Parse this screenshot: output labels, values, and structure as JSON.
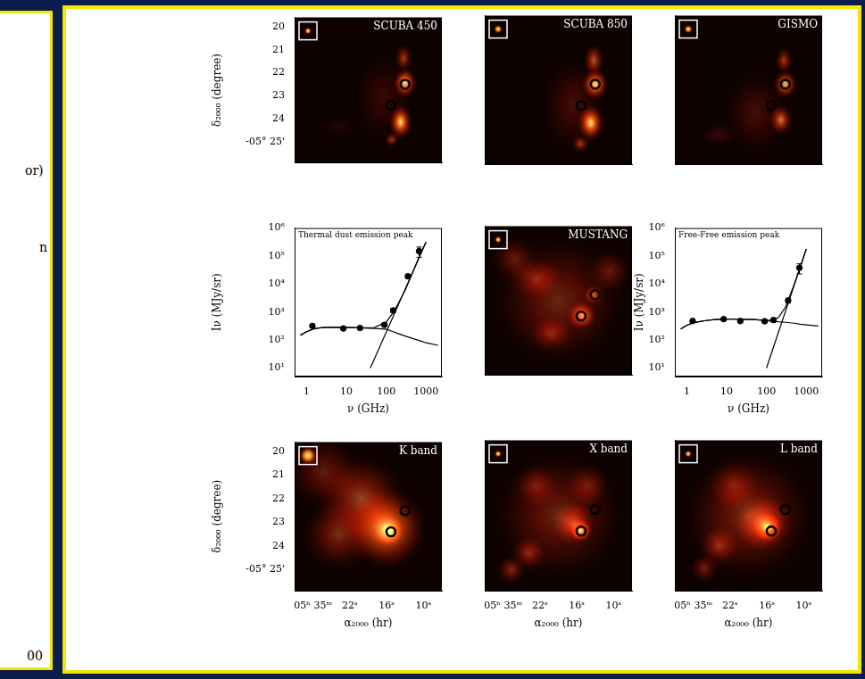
{
  "left_fragment": {
    "texts": [
      "or)",
      "n",
      "00"
    ]
  },
  "chart_data": [
    {
      "type": "scatter",
      "title": "SCUBA 450",
      "y_label": "δ₂₀₀₀ (degree)",
      "tick_labels": "y",
      "grid": false,
      "xlim": [
        31,
        7
      ],
      "ylim": [
        25.9,
        19.6
      ],
      "yticks": [
        20,
        21,
        22,
        23,
        24,
        {
          "value": 25,
          "label": "-05° 25'"
        }
      ],
      "series": [
        {
          "x": [
            13.0,
            15.3
          ],
          "values": [
            22.5,
            23.4
          ],
          "color": "#000000",
          "marker": "circle_open"
        }
      ]
    },
    {
      "type": "scatter",
      "title": "SCUBA 850",
      "tick_labels": false,
      "grid": false,
      "xlim": [
        31,
        7
      ],
      "ylim": [
        25.9,
        19.6
      ],
      "series": [
        {
          "x": [
            13.0,
            15.3
          ],
          "values": [
            22.5,
            23.4
          ],
          "color": "#000000",
          "marker": "circle_open"
        }
      ]
    },
    {
      "type": "scatter",
      "title": "GISMO",
      "tick_labels": false,
      "grid": false,
      "xlim": [
        31,
        7
      ],
      "ylim": [
        25.9,
        19.6
      ],
      "series": [
        {
          "x": [
            13.0,
            15.3
          ],
          "values": [
            22.5,
            23.4
          ],
          "color": "#000000",
          "marker": "circle_open"
        }
      ]
    },
    {
      "type": "scatter",
      "log": true,
      "annotation": "Thermal dust emission peak",
      "x_label": "ν (GHz)",
      "y_label": "Iν (MJy/sr)",
      "tick_labels": true,
      "grid": false,
      "xlim": [
        0.5,
        2500
      ],
      "ylim": [
        5,
        1000000
      ],
      "xticks": [
        1,
        10,
        100,
        1000
      ],
      "yticks": [
        {
          "value": 10,
          "label": "10¹"
        },
        {
          "value": 100,
          "label": "10²"
        },
        {
          "value": 1000,
          "label": "10³"
        },
        {
          "value": 10000,
          "label": "10⁴"
        },
        {
          "value": 100000,
          "label": "10⁵"
        },
        {
          "value": 1000000,
          "label": "10⁶"
        }
      ],
      "series": [
        {
          "type": "scatter",
          "marker": "circle",
          "color": "#000000",
          "x": [
            1.4,
            8.4,
            22,
            90,
            150,
            350,
            670
          ],
          "values": [
            320,
            260,
            270,
            350,
            1150,
            19000,
            150000
          ],
          "errors": [
            30,
            25,
            25,
            50,
            200,
            3000,
            60000
          ]
        },
        {
          "type": "line",
          "line_style": "solid",
          "color": "#000000",
          "x": [
            0.7,
            1,
            1.5,
            2,
            3,
            5,
            10,
            20,
            50,
            100,
            150,
            200,
            300,
            500,
            700,
            1000,
            2000
          ],
          "values": [
            150,
            200,
            250,
            270,
            285,
            290,
            285,
            275,
            260,
            245,
            200,
            170,
            140,
            110,
            95,
            80,
            65
          ]
        },
        {
          "type": "line",
          "line_style": "solid",
          "color": "#000000",
          "x": [
            40,
            1000
          ],
          "values": [
            10,
            320000
          ]
        },
        {
          "type": "line",
          "line_style": "solid",
          "color": "#000000",
          "x": [
            0.7,
            1,
            1.5,
            2,
            3,
            5,
            10,
            20,
            50,
            100,
            150,
            200,
            300,
            500,
            700,
            1000
          ],
          "values": [
            150,
            200,
            250,
            270,
            285,
            290,
            285,
            275,
            280,
            440,
            960,
            2020,
            6000,
            34000,
            110000,
            320000
          ]
        }
      ]
    },
    {
      "type": "scatter",
      "title": "MUSTANG",
      "tick_labels": false,
      "grid": false,
      "xlim": [
        31,
        7
      ],
      "ylim": [
        25.9,
        19.6
      ],
      "series": [
        {
          "x": [
            13.0,
            15.3
          ],
          "values": [
            22.5,
            23.4
          ],
          "color": "#000000",
          "marker": "circle_open"
        }
      ]
    },
    {
      "type": "scatter",
      "log": true,
      "annotation": "Free-Free emission peak",
      "x_label": "ν (GHz)",
      "y_label": "Iν (MJy/sr)",
      "tick_labels": true,
      "grid": false,
      "xlim": [
        0.5,
        2500
      ],
      "ylim": [
        5,
        1000000
      ],
      "xticks": [
        1,
        10,
        100,
        1000
      ],
      "yticks": [
        {
          "value": 10,
          "label": "10¹"
        },
        {
          "value": 100,
          "label": "10²"
        },
        {
          "value": 1000,
          "label": "10³"
        },
        {
          "value": 10000,
          "label": "10⁴"
        },
        {
          "value": 100000,
          "label": "10⁵"
        },
        {
          "value": 1000000,
          "label": "10⁶"
        }
      ],
      "series": [
        {
          "type": "scatter",
          "marker": "circle",
          "color": "#000000",
          "x": [
            1.4,
            8.4,
            22,
            90,
            150,
            350,
            670
          ],
          "values": [
            480,
            560,
            480,
            470,
            520,
            2600,
            38000
          ],
          "errors": [
            40,
            50,
            40,
            50,
            80,
            500,
            15000
          ]
        },
        {
          "type": "line",
          "line_style": "solid",
          "color": "#000000",
          "x": [
            0.7,
            1,
            1.5,
            2,
            3,
            5,
            10,
            20,
            50,
            100,
            150,
            200,
            300,
            500,
            700,
            1000,
            2000
          ],
          "values": [
            250,
            340,
            420,
            450,
            500,
            540,
            560,
            560,
            540,
            490,
            470,
            450,
            430,
            400,
            370,
            350,
            320
          ]
        },
        {
          "type": "line",
          "line_style": "solid",
          "color": "#000000",
          "x": [
            100,
            1000
          ],
          "values": [
            10,
            180000
          ]
        },
        {
          "type": "line",
          "line_style": "solid",
          "color": "#000000",
          "x": [
            0.7,
            1,
            1.5,
            2,
            3,
            5,
            10,
            20,
            50,
            100,
            150,
            200,
            300,
            500,
            700,
            1000
          ],
          "values": [
            250,
            340,
            420,
            450,
            500,
            540,
            560,
            560,
            540,
            500,
            520,
            640,
            1500,
            9900,
            40000,
            180000
          ]
        }
      ]
    },
    {
      "type": "scatter",
      "title": "K band",
      "x_label": "α₂₀₀₀ (hr)",
      "y_label": "δ₂₀₀₀ (degree)",
      "tick_labels": true,
      "grid": false,
      "xlim": [
        31,
        7
      ],
      "ylim": [
        25.9,
        19.6
      ],
      "xticks": [
        {
          "value": 28,
          "label": "05ʰ 35ᵐ"
        },
        {
          "value": 22,
          "label": "22ˢ"
        },
        {
          "value": 16,
          "label": "16ˢ"
        },
        {
          "value": 10,
          "label": "10ˢ"
        }
      ],
      "yticks": [
        20,
        21,
        22,
        23,
        24,
        {
          "value": 25,
          "label": "-05° 25'"
        }
      ],
      "series": [
        {
          "x": [
            13.0,
            15.3
          ],
          "values": [
            22.5,
            23.4
          ],
          "color": "#000000",
          "marker": "circle_open"
        }
      ]
    },
    {
      "type": "scatter",
      "title": "X band",
      "x_label": "α₂₀₀₀ (hr)",
      "tick_labels": "x",
      "grid": false,
      "xlim": [
        31,
        7
      ],
      "ylim": [
        25.9,
        19.6
      ],
      "xticks": [
        {
          "value": 28,
          "label": "05ʰ 35ᵐ"
        },
        {
          "value": 22,
          "label": "22ˢ"
        },
        {
          "value": 16,
          "label": "16ˢ"
        },
        {
          "value": 10,
          "label": "10ˢ"
        }
      ],
      "series": [
        {
          "x": [
            13.0,
            15.3
          ],
          "values": [
            22.5,
            23.4
          ],
          "color": "#000000",
          "marker": "circle_open"
        }
      ]
    },
    {
      "type": "scatter",
      "title": "L band",
      "x_label": "α₂₀₀₀ (hr)",
      "tick_labels": "x",
      "grid": false,
      "xlim": [
        31,
        7
      ],
      "ylim": [
        25.9,
        19.6
      ],
      "xticks": [
        {
          "value": 28,
          "label": "05ʰ 35ᵐ"
        },
        {
          "value": 22,
          "label": "22ˢ"
        },
        {
          "value": 16,
          "label": "16ˢ"
        },
        {
          "value": 10,
          "label": "10ˢ"
        }
      ],
      "series": [
        {
          "x": [
            13.0,
            15.3
          ],
          "values": [
            22.5,
            23.4
          ],
          "color": "#000000",
          "marker": "circle_open"
        }
      ]
    }
  ]
}
